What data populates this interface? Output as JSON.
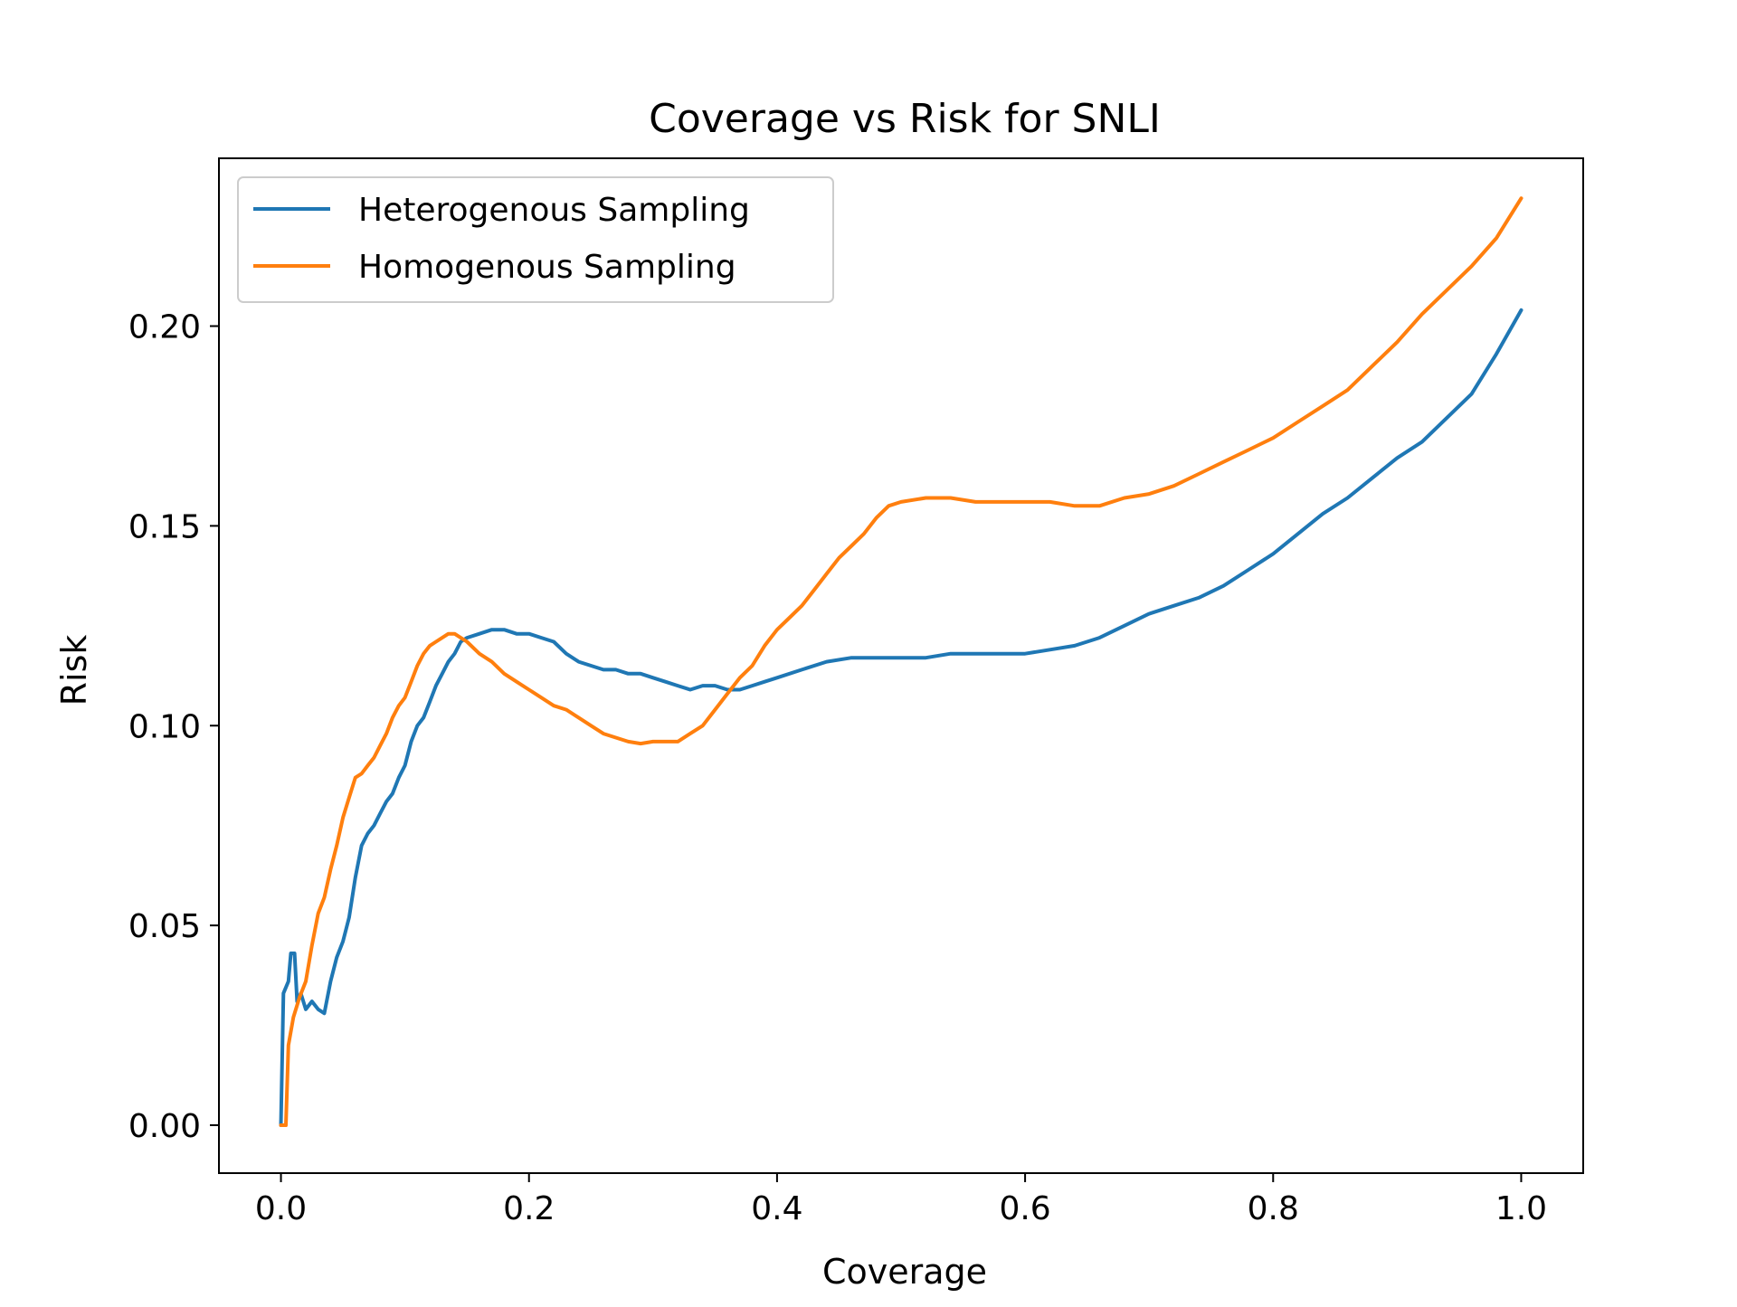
{
  "chart_data": {
    "type": "line",
    "title": "Coverage vs Risk for SNLI",
    "xlabel": "Coverage",
    "ylabel": "Risk",
    "xlim": [
      -0.05,
      1.05
    ],
    "ylim": [
      -0.012,
      0.242
    ],
    "xticks": [
      0.0,
      0.2,
      0.4,
      0.6,
      0.8,
      1.0
    ],
    "xtick_labels": [
      "0.0",
      "0.2",
      "0.4",
      "0.6",
      "0.8",
      "1.0"
    ],
    "yticks": [
      0.0,
      0.05,
      0.1,
      0.15,
      0.2
    ],
    "ytick_labels": [
      "0.00",
      "0.05",
      "0.10",
      "0.15",
      "0.20"
    ],
    "grid": false,
    "legend_position": "top-left",
    "series": [
      {
        "name": "Heterogenous Sampling",
        "color": "#1f77b4",
        "points": [
          [
            0.0,
            0.0
          ],
          [
            0.002,
            0.033
          ],
          [
            0.006,
            0.036
          ],
          [
            0.008,
            0.043
          ],
          [
            0.011,
            0.043
          ],
          [
            0.013,
            0.031
          ],
          [
            0.016,
            0.033
          ],
          [
            0.02,
            0.029
          ],
          [
            0.025,
            0.031
          ],
          [
            0.03,
            0.029
          ],
          [
            0.035,
            0.028
          ],
          [
            0.04,
            0.036
          ],
          [
            0.045,
            0.042
          ],
          [
            0.05,
            0.046
          ],
          [
            0.055,
            0.052
          ],
          [
            0.06,
            0.062
          ],
          [
            0.065,
            0.07
          ],
          [
            0.07,
            0.073
          ],
          [
            0.075,
            0.075
          ],
          [
            0.08,
            0.078
          ],
          [
            0.085,
            0.081
          ],
          [
            0.09,
            0.083
          ],
          [
            0.095,
            0.087
          ],
          [
            0.1,
            0.09
          ],
          [
            0.105,
            0.096
          ],
          [
            0.11,
            0.1
          ],
          [
            0.115,
            0.102
          ],
          [
            0.12,
            0.106
          ],
          [
            0.125,
            0.11
          ],
          [
            0.13,
            0.113
          ],
          [
            0.135,
            0.116
          ],
          [
            0.14,
            0.118
          ],
          [
            0.145,
            0.121
          ],
          [
            0.15,
            0.122
          ],
          [
            0.16,
            0.123
          ],
          [
            0.17,
            0.124
          ],
          [
            0.18,
            0.124
          ],
          [
            0.19,
            0.123
          ],
          [
            0.2,
            0.123
          ],
          [
            0.21,
            0.122
          ],
          [
            0.22,
            0.121
          ],
          [
            0.23,
            0.118
          ],
          [
            0.24,
            0.116
          ],
          [
            0.25,
            0.115
          ],
          [
            0.26,
            0.114
          ],
          [
            0.27,
            0.114
          ],
          [
            0.28,
            0.113
          ],
          [
            0.29,
            0.113
          ],
          [
            0.3,
            0.112
          ],
          [
            0.31,
            0.111
          ],
          [
            0.32,
            0.11
          ],
          [
            0.33,
            0.109
          ],
          [
            0.34,
            0.11
          ],
          [
            0.35,
            0.11
          ],
          [
            0.36,
            0.109
          ],
          [
            0.37,
            0.109
          ],
          [
            0.38,
            0.11
          ],
          [
            0.39,
            0.111
          ],
          [
            0.4,
            0.112
          ],
          [
            0.42,
            0.114
          ],
          [
            0.44,
            0.116
          ],
          [
            0.46,
            0.117
          ],
          [
            0.48,
            0.117
          ],
          [
            0.5,
            0.117
          ],
          [
            0.52,
            0.117
          ],
          [
            0.54,
            0.118
          ],
          [
            0.56,
            0.118
          ],
          [
            0.58,
            0.118
          ],
          [
            0.6,
            0.118
          ],
          [
            0.62,
            0.119
          ],
          [
            0.64,
            0.12
          ],
          [
            0.66,
            0.122
          ],
          [
            0.68,
            0.125
          ],
          [
            0.7,
            0.128
          ],
          [
            0.72,
            0.13
          ],
          [
            0.74,
            0.132
          ],
          [
            0.76,
            0.135
          ],
          [
            0.78,
            0.139
          ],
          [
            0.8,
            0.143
          ],
          [
            0.82,
            0.148
          ],
          [
            0.84,
            0.153
          ],
          [
            0.86,
            0.157
          ],
          [
            0.88,
            0.162
          ],
          [
            0.9,
            0.167
          ],
          [
            0.92,
            0.171
          ],
          [
            0.94,
            0.177
          ],
          [
            0.96,
            0.183
          ],
          [
            0.98,
            0.193
          ],
          [
            1.0,
            0.204
          ]
        ]
      },
      {
        "name": "Homogenous Sampling",
        "color": "#ff7f0e",
        "points": [
          [
            0.0,
            0.0
          ],
          [
            0.004,
            0.0
          ],
          [
            0.006,
            0.02
          ],
          [
            0.01,
            0.027
          ],
          [
            0.015,
            0.032
          ],
          [
            0.02,
            0.036
          ],
          [
            0.025,
            0.045
          ],
          [
            0.03,
            0.053
          ],
          [
            0.035,
            0.057
          ],
          [
            0.04,
            0.064
          ],
          [
            0.045,
            0.07
          ],
          [
            0.05,
            0.077
          ],
          [
            0.055,
            0.082
          ],
          [
            0.06,
            0.087
          ],
          [
            0.065,
            0.088
          ],
          [
            0.07,
            0.09
          ],
          [
            0.075,
            0.092
          ],
          [
            0.08,
            0.095
          ],
          [
            0.085,
            0.098
          ],
          [
            0.09,
            0.102
          ],
          [
            0.095,
            0.105
          ],
          [
            0.1,
            0.107
          ],
          [
            0.105,
            0.111
          ],
          [
            0.11,
            0.115
          ],
          [
            0.115,
            0.118
          ],
          [
            0.12,
            0.12
          ],
          [
            0.125,
            0.121
          ],
          [
            0.13,
            0.122
          ],
          [
            0.135,
            0.123
          ],
          [
            0.14,
            0.123
          ],
          [
            0.145,
            0.122
          ],
          [
            0.15,
            0.121
          ],
          [
            0.16,
            0.118
          ],
          [
            0.17,
            0.116
          ],
          [
            0.18,
            0.113
          ],
          [
            0.19,
            0.111
          ],
          [
            0.2,
            0.109
          ],
          [
            0.21,
            0.107
          ],
          [
            0.22,
            0.105
          ],
          [
            0.23,
            0.104
          ],
          [
            0.24,
            0.102
          ],
          [
            0.25,
            0.1
          ],
          [
            0.26,
            0.098
          ],
          [
            0.27,
            0.097
          ],
          [
            0.28,
            0.096
          ],
          [
            0.29,
            0.0955
          ],
          [
            0.3,
            0.096
          ],
          [
            0.31,
            0.096
          ],
          [
            0.32,
            0.096
          ],
          [
            0.33,
            0.098
          ],
          [
            0.34,
            0.1
          ],
          [
            0.35,
            0.104
          ],
          [
            0.36,
            0.108
          ],
          [
            0.37,
            0.112
          ],
          [
            0.38,
            0.115
          ],
          [
            0.39,
            0.12
          ],
          [
            0.4,
            0.124
          ],
          [
            0.41,
            0.127
          ],
          [
            0.42,
            0.13
          ],
          [
            0.43,
            0.134
          ],
          [
            0.44,
            0.138
          ],
          [
            0.45,
            0.142
          ],
          [
            0.46,
            0.145
          ],
          [
            0.47,
            0.148
          ],
          [
            0.48,
            0.152
          ],
          [
            0.49,
            0.155
          ],
          [
            0.5,
            0.156
          ],
          [
            0.52,
            0.157
          ],
          [
            0.54,
            0.157
          ],
          [
            0.56,
            0.156
          ],
          [
            0.58,
            0.156
          ],
          [
            0.6,
            0.156
          ],
          [
            0.62,
            0.156
          ],
          [
            0.64,
            0.155
          ],
          [
            0.66,
            0.155
          ],
          [
            0.68,
            0.157
          ],
          [
            0.7,
            0.158
          ],
          [
            0.72,
            0.16
          ],
          [
            0.74,
            0.163
          ],
          [
            0.76,
            0.166
          ],
          [
            0.78,
            0.169
          ],
          [
            0.8,
            0.172
          ],
          [
            0.82,
            0.176
          ],
          [
            0.84,
            0.18
          ],
          [
            0.86,
            0.184
          ],
          [
            0.88,
            0.19
          ],
          [
            0.9,
            0.196
          ],
          [
            0.92,
            0.203
          ],
          [
            0.94,
            0.209
          ],
          [
            0.96,
            0.215
          ],
          [
            0.98,
            0.222
          ],
          [
            1.0,
            0.232
          ]
        ]
      }
    ]
  }
}
